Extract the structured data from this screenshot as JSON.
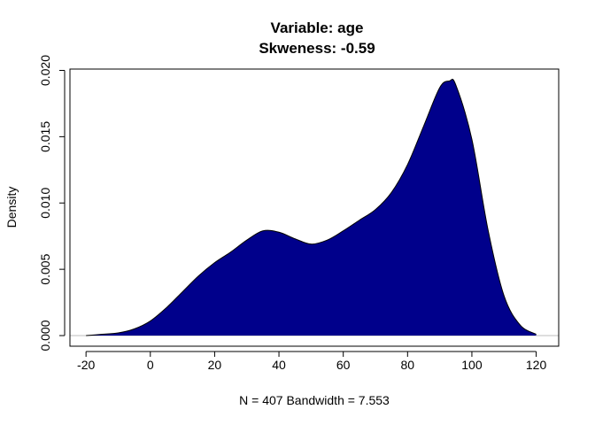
{
  "chart_data": {
    "type": "area",
    "title": "Variable: age",
    "subtitle": "Skweness: -0.59",
    "xlabel": "N = 407   Bandwidth = 7.553",
    "ylabel": "Density",
    "xlim": [
      -25,
      127
    ],
    "ylim": [
      -0.0008,
      0.0201
    ],
    "x_ticks": [
      -20,
      0,
      20,
      40,
      60,
      80,
      100,
      120
    ],
    "x_tick_labels": [
      "-20",
      "0",
      "20",
      "40",
      "60",
      "80",
      "100",
      "120"
    ],
    "y_ticks": [
      0,
      0.005,
      0.01,
      0.015,
      0.02
    ],
    "y_tick_labels": [
      "0.000",
      "0.005",
      "0.010",
      "0.015",
      "0.020"
    ],
    "grid": false,
    "baseline": 0,
    "fill_color": "#00008B",
    "baseline_color": "#BEBEBE",
    "series": [
      {
        "x": [
          -20,
          -15,
          -10,
          -5,
          0,
          5,
          10,
          15,
          20,
          25,
          30,
          35,
          40,
          45,
          50,
          55,
          60,
          65,
          70,
          75,
          80,
          85,
          90,
          93,
          95,
          100,
          105,
          110,
          115,
          120
        ],
        "y": [
          0.0,
          0.0001,
          0.0002,
          0.0005,
          0.0011,
          0.0021,
          0.0033,
          0.0045,
          0.0055,
          0.0063,
          0.0072,
          0.0079,
          0.0078,
          0.0073,
          0.0069,
          0.0072,
          0.0079,
          0.0087,
          0.0095,
          0.0108,
          0.0129,
          0.0158,
          0.0187,
          0.0192,
          0.0189,
          0.0148,
          0.008,
          0.003,
          0.0008,
          0.0001
        ]
      }
    ]
  }
}
